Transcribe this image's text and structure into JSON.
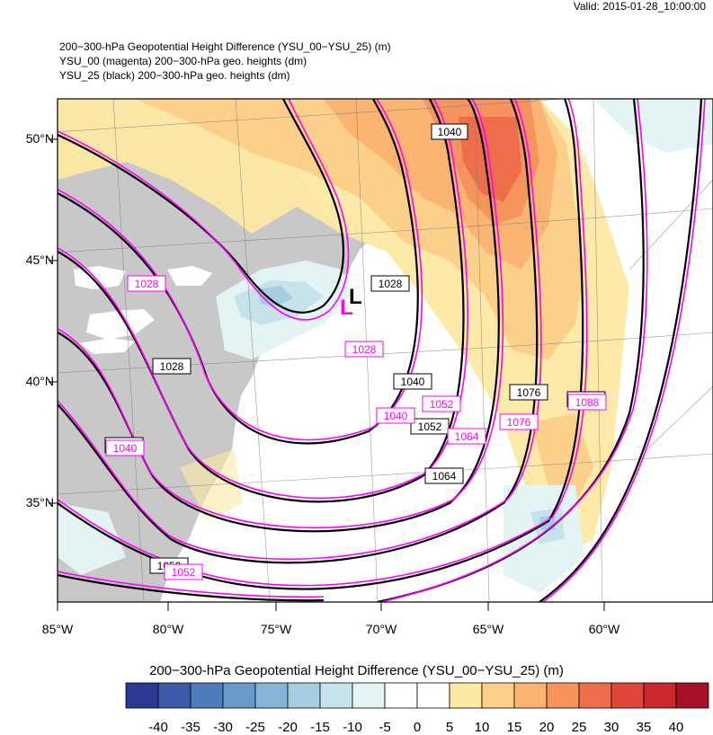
{
  "valid_time": "Valid: 2015-01-28_10:00:00",
  "titles": [
    "200−300-hPa Geopotential Height Difference (YSU_00−YSU_25)   (m)",
    "YSU_00 (magenta) 200−300-hPa geo. heights   (dm)",
    "YSU_25 (black) 200−300-hPa geo. heights   (dm)"
  ],
  "lat_labels": [
    "50°N",
    "45°N",
    "40°N",
    "35°N"
  ],
  "lon_labels": [
    "85°W",
    "80°W",
    "75°W",
    "70°W",
    "65°W",
    "60°W"
  ],
  "colorbar": {
    "title": "200−300-hPa Geopotential Height Difference (YSU_00−YSU_25)  (m)",
    "ticks": [
      "-40",
      "-35",
      "-30",
      "-25",
      "-20",
      "-15",
      "-10",
      "-5",
      "0",
      "5",
      "10",
      "15",
      "20",
      "25",
      "30",
      "35",
      "40"
    ],
    "colors": [
      "#2c3a93",
      "#3c5aa8",
      "#4f7cb8",
      "#6a9ac8",
      "#86b4d6",
      "#a7cde2",
      "#c6e3ec",
      "#e4f3f3",
      "#ffffff",
      "#ffffff",
      "#fde9a4",
      "#fcd08a",
      "#fbb472",
      "#f7935d",
      "#ee6e4c",
      "#de4739",
      "#c9282e",
      "#a8102a"
    ]
  },
  "low_markers": [
    {
      "symbol": "L",
      "model": "YSU_00",
      "color": "#ff00ff"
    },
    {
      "symbol": "L",
      "model": "YSU_25",
      "color": "#000000"
    }
  ],
  "black_contour_labels": [
    "1040",
    "1028",
    "1028",
    "1040",
    "1040",
    "1052",
    "1076",
    "1088",
    "1064",
    "1052"
  ],
  "magenta_contour_labels": [
    "1028",
    "1028",
    "1040",
    "1052",
    "1064",
    "1076",
    "1088",
    "1040",
    "1052"
  ],
  "colors": {
    "magenta": "#ff00ff",
    "black": "#000000",
    "land": "#c8c8c8",
    "ocean": "#ffffff"
  }
}
